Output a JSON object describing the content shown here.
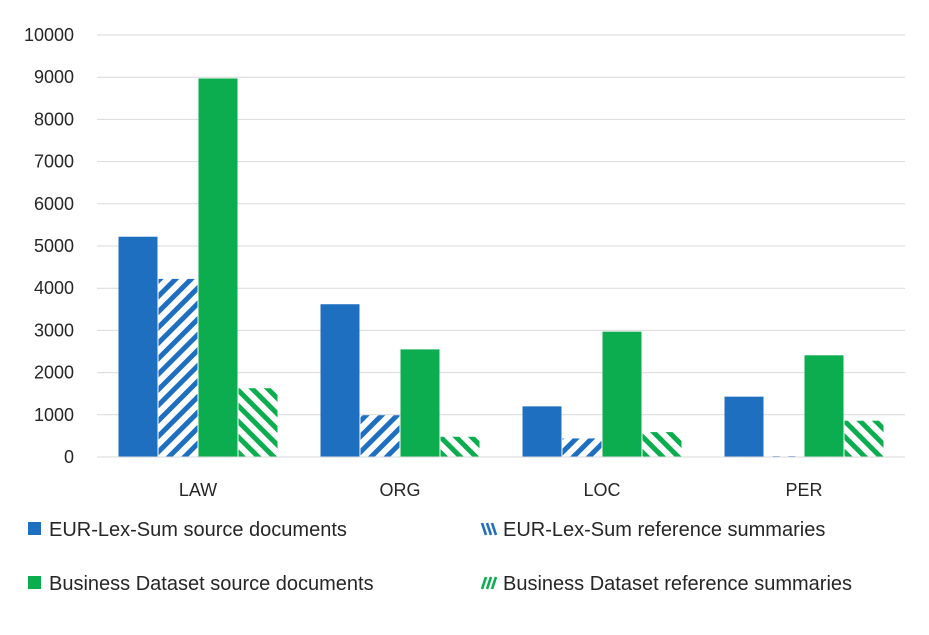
{
  "chart_data": {
    "type": "bar",
    "title": "",
    "xlabel": "",
    "ylabel": "",
    "categories": [
      "LAW",
      "ORG",
      "LOC",
      "PER"
    ],
    "ylim": [
      0,
      10000
    ],
    "yticks": [
      "0",
      "1000",
      "2000",
      "3000",
      "4000",
      "5000",
      "6000",
      "7000",
      "8000",
      "9000",
      "10000"
    ],
    "grid": true,
    "legend_position": "bottom",
    "series": [
      {
        "name": "EUR-Lex-Sum source documents",
        "values": [
          5220,
          3620,
          1200,
          1430
        ],
        "color": "#1f6fc1",
        "pattern": "solid"
      },
      {
        "name": "EUR-Lex-Sum reference summaries",
        "values": [
          4220,
          990,
          440,
          20
        ],
        "color": "#1f6fc1",
        "pattern": "hatched"
      },
      {
        "name": "Business Dataset source documents",
        "values": [
          8970,
          2550,
          2970,
          2410
        ],
        "color": "#0bad4f",
        "pattern": "solid"
      },
      {
        "name": "Business Dataset reference summaries",
        "values": [
          1630,
          480,
          590,
          860
        ],
        "color": "#0bad4f",
        "pattern": "hatched"
      }
    ]
  }
}
